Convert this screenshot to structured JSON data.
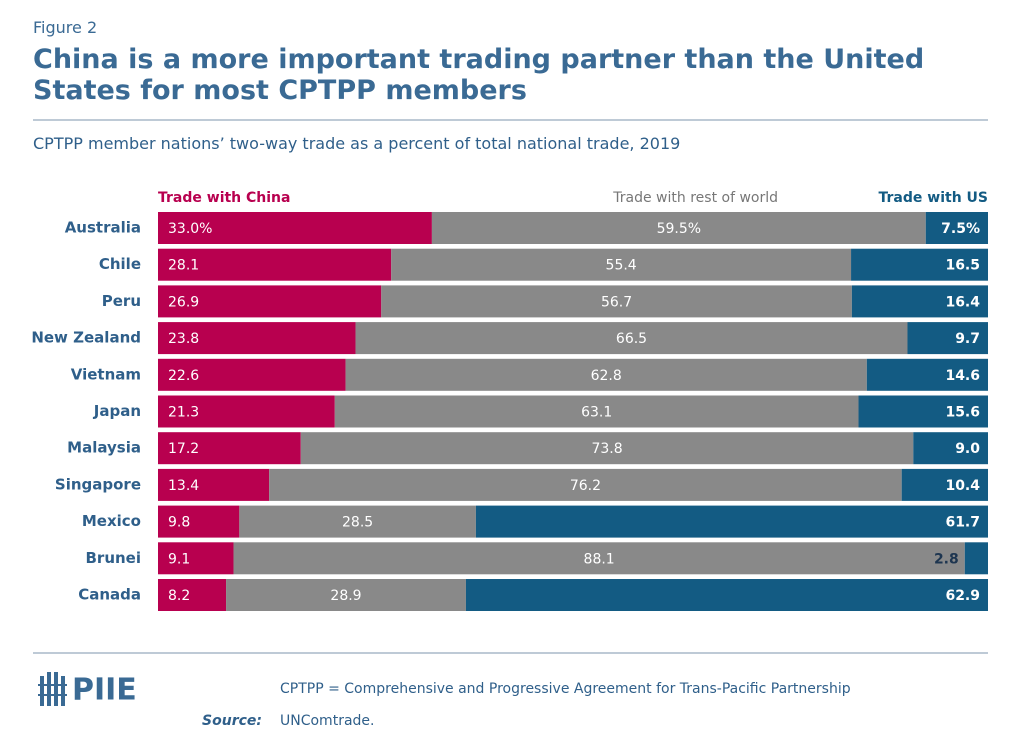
{
  "figure_label": "Figure 2",
  "chart_data": {
    "type": "bar",
    "orientation": "horizontal",
    "stacked": true,
    "title": "China is a more important trading partner than the United States for most CPTPP members",
    "subtitle": "CPTPP member nations’ two-way trade as a percent of total national trade, 2019",
    "categories": [
      "Australia",
      "Chile",
      "Peru",
      "New Zealand",
      "Vietnam",
      "Japan",
      "Malaysia",
      "Singapore",
      "Mexico",
      "Brunei",
      "Canada"
    ],
    "xlim": [
      0,
      100
    ],
    "series": [
      {
        "name": "Trade with China",
        "color": "#b8004f",
        "values": [
          33.0,
          28.1,
          26.9,
          23.8,
          22.6,
          21.3,
          17.2,
          13.4,
          9.8,
          9.1,
          8.2
        ],
        "value_labels": [
          "33.0%",
          "28.1",
          "26.9",
          "23.8",
          "22.6",
          "21.3",
          "17.2",
          "13.4",
          "9.8",
          "9.1",
          "8.2"
        ]
      },
      {
        "name": "Trade with rest of world",
        "color": "#898989",
        "values": [
          59.5,
          55.4,
          56.7,
          66.5,
          62.8,
          63.1,
          73.8,
          76.2,
          28.5,
          88.1,
          28.9
        ],
        "value_labels": [
          "59.5%",
          "55.4",
          "56.7",
          "66.5",
          "62.8",
          "63.1",
          "73.8",
          "76.2",
          "28.5",
          "88.1",
          "28.9"
        ]
      },
      {
        "name": "Trade with US",
        "color": "#135b83",
        "values": [
          7.5,
          16.5,
          16.4,
          9.7,
          14.6,
          15.6,
          9.0,
          10.4,
          61.7,
          2.8,
          62.9
        ],
        "value_labels": [
          "7.5%",
          "16.5",
          "16.4",
          "9.7",
          "14.6",
          "15.6",
          "9.0",
          "10.4",
          "61.7",
          "2.8",
          "62.9"
        ]
      }
    ]
  },
  "footer": {
    "logo": "PIIE",
    "note": "CPTPP = Comprehensive and Progressive Agreement for Trans-Pacific Partnership",
    "source_label": "Source:",
    "source": "UNComtrade."
  }
}
